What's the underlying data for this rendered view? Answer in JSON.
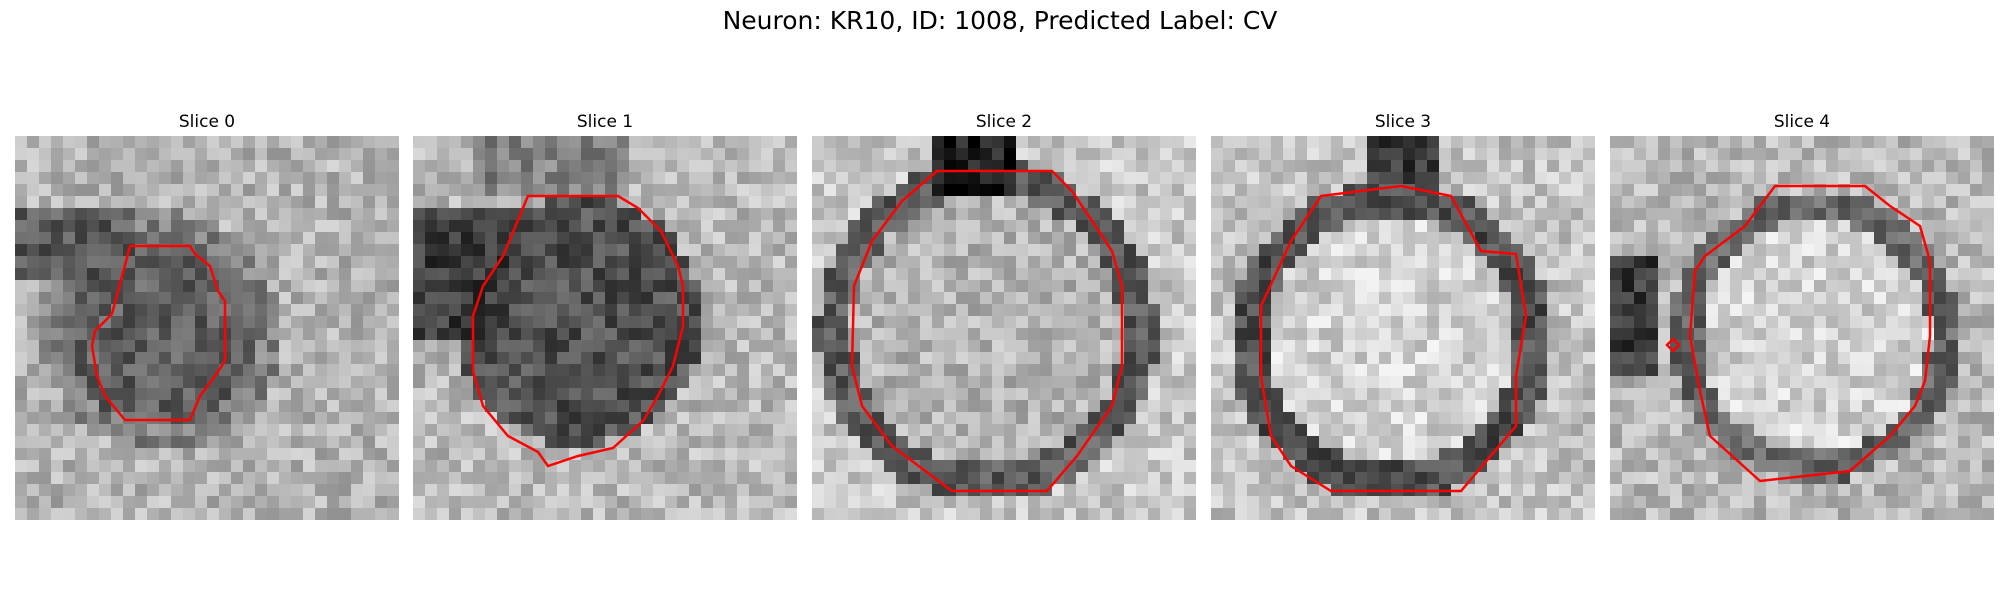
{
  "figure": {
    "title": "Neuron: KR10, ID: 1008, Predicted Label: CV",
    "contour_color": "#ff0000"
  },
  "slices": [
    {
      "title": "Slice 0"
    },
    {
      "title": "Slice 1"
    },
    {
      "title": "Slice 2"
    },
    {
      "title": "Slice 3"
    },
    {
      "title": "Slice 4"
    }
  ]
}
